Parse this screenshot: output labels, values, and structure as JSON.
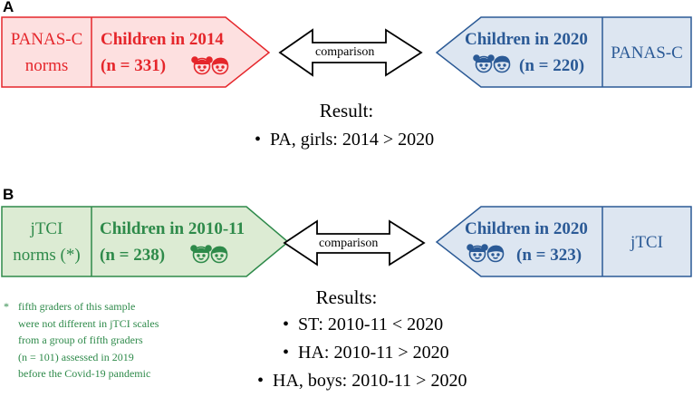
{
  "panel_a": {
    "letter": "A",
    "left_box": {
      "norms_line1": "PANAS-C",
      "norms_line2": "norms",
      "title": "Children in 2014",
      "n": "(n = 331)",
      "color": "#e5262b",
      "fill": "#fde0e0"
    },
    "comparison_label": "comparison",
    "right_box": {
      "title": "Children in 2020",
      "n": "(n = 220)",
      "norms": "PANAS-C",
      "color": "#2b5a96",
      "fill": "#dde6f1"
    },
    "result_title": "Result:",
    "results": [
      "PA, girls: 2014 > 2020"
    ]
  },
  "panel_b": {
    "letter": "B",
    "left_box": {
      "norms_line1": "jTCI",
      "norms_line2": "norms (*)",
      "title": "Children in 2010-11",
      "n": "(n = 238)",
      "color": "#2e8a4a",
      "fill": "#dcebd3"
    },
    "comparison_label": "comparison",
    "right_box": {
      "title": "Children in 2020",
      "n": "(n = 323)",
      "norms": "jTCI",
      "color": "#2b5a96",
      "fill": "#dde6f1"
    },
    "result_title": "Results:",
    "results": [
      "ST: 2010-11 < 2020",
      "HA: 2010-11 > 2020",
      "HA, boys: 2010-11 > 2020"
    ],
    "footnote": {
      "marker": "*",
      "lines": [
        "fifth graders of this sample",
        "were not different in jTCI scales",
        "from a group of fifth graders",
        "(n = 101) assessed in 2019",
        "before the Covid-19 pandemic"
      ]
    }
  },
  "bullet_char": "•",
  "icons": [
    "girl-boy-faces-icon",
    "double-arrow-icon"
  ]
}
